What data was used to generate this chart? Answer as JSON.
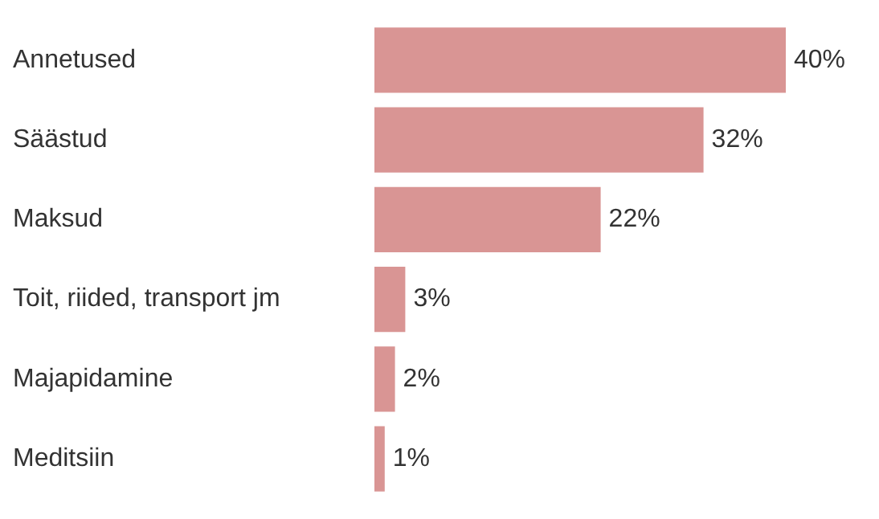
{
  "chart_data": {
    "type": "bar",
    "orientation": "horizontal",
    "categories": [
      "Annetused",
      "Säästud",
      "Maksud",
      "Toit, riided, transport jm",
      "Majapidamine",
      "Meditsiin"
    ],
    "values": [
      40,
      32,
      22,
      3,
      2,
      1
    ],
    "value_labels": [
      "40%",
      "32%",
      "22%",
      "3%",
      "2%",
      "1%"
    ],
    "color": "#d99594",
    "grid": false,
    "legend": false,
    "tick_labels": "y"
  }
}
